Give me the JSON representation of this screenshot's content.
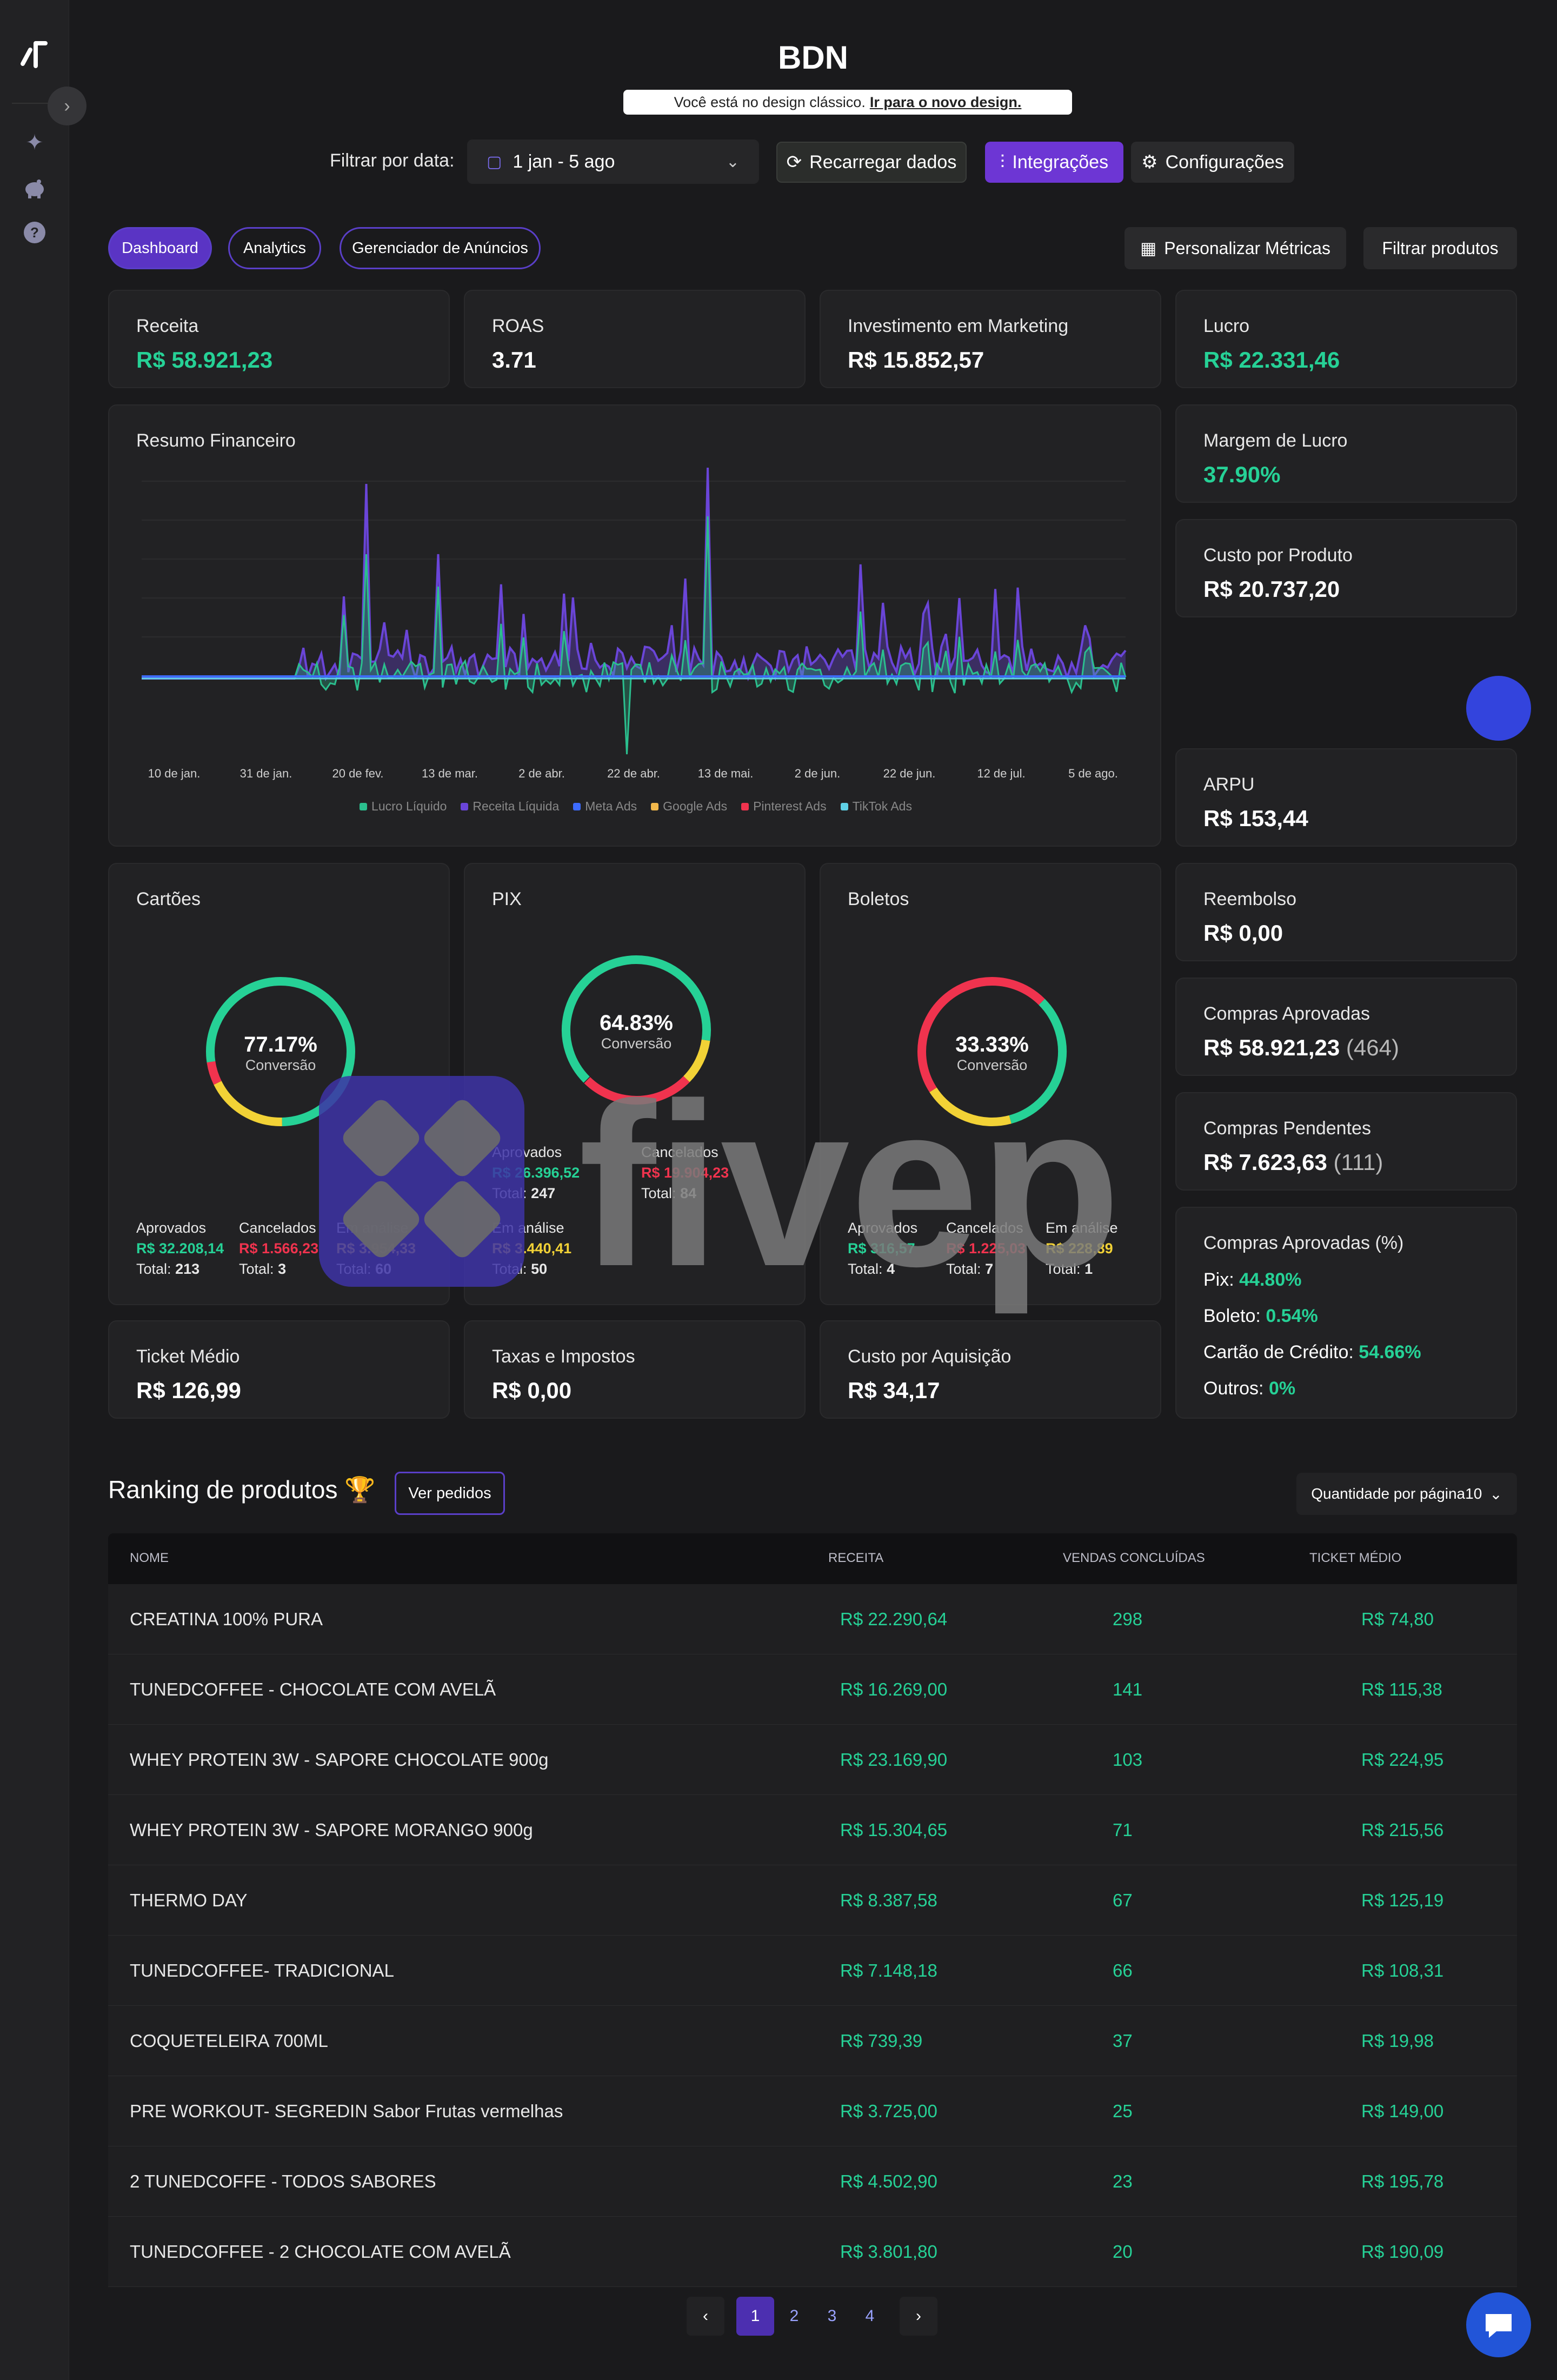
{
  "app": {
    "title": "BDN"
  },
  "notice": {
    "text": "Você está no design clássico.",
    "link": "Ir para o novo design."
  },
  "filters": {
    "label": "Filtrar por data:",
    "date_range": "1 jan - 5 ago",
    "reload": "Recarregar dados",
    "integrations": "Integrações",
    "settings": "Configurações"
  },
  "tabs": [
    {
      "label": "Dashboard",
      "active": true
    },
    {
      "label": "Analytics"
    },
    {
      "label": "Gerenciador de Anúncios"
    }
  ],
  "actions": {
    "customize": "Personalizar Métricas",
    "filter_products": "Filtrar produtos"
  },
  "metrics": {
    "receita": {
      "label": "Receita",
      "value": "R$ 58.921,23"
    },
    "roas": {
      "label": "ROAS",
      "value": "3.71"
    },
    "investimento": {
      "label": "Investimento em Marketing",
      "value": "R$ 15.852,57"
    },
    "lucro": {
      "label": "Lucro",
      "value": "R$ 22.331,46"
    },
    "margem": {
      "label": "Margem de Lucro",
      "value": "37.90%"
    },
    "custo_produto": {
      "label": "Custo por Produto",
      "value": "R$ 20.737,20"
    },
    "arpu": {
      "label": "ARPU",
      "value": "R$ 153,44"
    },
    "reembolso": {
      "label": "Reembolso",
      "value": "R$ 0,00"
    },
    "compras_aprovadas": {
      "label": "Compras Aprovadas",
      "value": "R$ 58.921,23",
      "count": "(464)"
    },
    "compras_pendentes": {
      "label": "Compras Pendentes",
      "value": "R$ 7.623,63",
      "count": "(111)"
    },
    "ticket": {
      "label": "Ticket Médio",
      "value": "R$ 126,99"
    },
    "taxas": {
      "label": "Taxas e Impostos",
      "value": "R$ 0,00"
    },
    "cpa": {
      "label": "Custo por Aquisição",
      "value": "R$ 34,17"
    }
  },
  "approved_pct": {
    "label": "Compras Aprovadas (%)",
    "pix_label": "Pix:",
    "pix": "44.80%",
    "boleto_label": "Boleto:",
    "boleto": "0.54%",
    "cartao_label": "Cartão de Crédito:",
    "cartao": "54.66%",
    "outros_label": "Outros:",
    "outros": "0%"
  },
  "payments": {
    "cartoes": {
      "title": "Cartões",
      "pct": "77.17%",
      "sub": "Conversão",
      "ring": [
        0.7717,
        0.18,
        0.05
      ],
      "aprovados_label": "Aprovados",
      "aprovados": "R$ 32.208,14",
      "aprovados_total": "213",
      "cancelados_label": "Cancelados",
      "cancelados": "R$ 1.566,23",
      "cancelados_total": "3",
      "analise_label": "Em análise",
      "analise": "R$ 3.954,33",
      "analise_total": "60",
      "total_label": "Total:"
    },
    "pix": {
      "title": "PIX",
      "pct": "64.83%",
      "sub": "Conversão",
      "ring": [
        0.6483,
        0.1,
        0.25
      ],
      "aprovados_label": "Aprovados",
      "aprovados": "R$ 26.396,52",
      "aprovados_total": "247",
      "cancelados_label": "Cancelados",
      "cancelados": "R$ 19.904,23",
      "cancelados_total": "84",
      "analise_label": "Em análise",
      "analise": "R$ 3.440,41",
      "analise_total": "50",
      "total_label": "Total:"
    },
    "boletos": {
      "title": "Boletos",
      "pct": "33.33%",
      "sub": "Conversão",
      "ring": [
        0.3333,
        0.2,
        0.4667
      ],
      "aprovados_label": "Aprovados",
      "aprovados": "R$ 316,57",
      "aprovados_total": "4",
      "cancelados_label": "Cancelados",
      "cancelados": "R$ 1.225,03",
      "cancelados_total": "7",
      "analise_label": "Em análise",
      "analise": "R$ 228,89",
      "analise_total": "1",
      "total_label": "Total:"
    }
  },
  "chart_data": {
    "type": "area",
    "title": "Resumo Financeiro",
    "x": [
      "10 de jan.",
      "31 de jan.",
      "20 de fev.",
      "13 de mar.",
      "2 de abr.",
      "22 de abr.",
      "13 de mai.",
      "2 de jun.",
      "22 de jun.",
      "12 de jul.",
      "5 de ago."
    ],
    "series": [
      {
        "name": "Lucro Líquido",
        "color": "#2bbf8e"
      },
      {
        "name": "Receita Líquida",
        "color": "#6a45d8"
      },
      {
        "name": "Meta Ads",
        "color": "#3d6bff"
      },
      {
        "name": "Google Ads",
        "color": "#f2b84b"
      },
      {
        "name": "Pinterest Ads",
        "color": "#f0334e"
      },
      {
        "name": "TikTok Ads",
        "color": "#5fd1e6"
      }
    ],
    "legend": "bottom"
  },
  "ranking": {
    "title": "Ranking de produtos 🏆",
    "orders_button": "Ver pedidos",
    "per_page": "Quantidade por página10",
    "columns": [
      "NOME",
      "RECEITA",
      "VENDAS CONCLUÍDAS",
      "TICKET MÉDIO"
    ],
    "rows": [
      [
        "CREATINA 100% PURA",
        "R$ 22.290,64",
        "298",
        "R$ 74,80"
      ],
      [
        "TUNEDCOFFEE - CHOCOLATE COM AVELÃ",
        "R$ 16.269,00",
        "141",
        "R$ 115,38"
      ],
      [
        "WHEY PROTEIN 3W - SAPORE CHOCOLATE 900g",
        "R$ 23.169,90",
        "103",
        "R$ 224,95"
      ],
      [
        "WHEY PROTEIN 3W - SAPORE MORANGO 900g",
        "R$ 15.304,65",
        "71",
        "R$ 215,56"
      ],
      [
        "THERMO DAY",
        "R$ 8.387,58",
        "67",
        "R$ 125,19"
      ],
      [
        "TUNEDCOFFEE- TRADICIONAL",
        "R$ 7.148,18",
        "66",
        "R$ 108,31"
      ],
      [
        "COQUETELEIRA 700ML",
        "R$ 739,39",
        "37",
        "R$ 19,98"
      ],
      [
        "PRE WORKOUT- SEGREDIN Sabor Frutas vermelhas",
        "R$ 3.725,00",
        "25",
        "R$ 149,00"
      ],
      [
        "2 TUNEDCOFFE - TODOS SABORES",
        "R$ 4.502,90",
        "23",
        "R$ 195,78"
      ],
      [
        "TUNEDCOFFEE - 2 CHOCOLATE COM AVELÃ",
        "R$ 3.801,80",
        "20",
        "R$ 190,09"
      ]
    ]
  },
  "pagination": {
    "pages": [
      "1",
      "2",
      "3",
      "4"
    ],
    "current": "1"
  },
  "watermark": "fivep"
}
